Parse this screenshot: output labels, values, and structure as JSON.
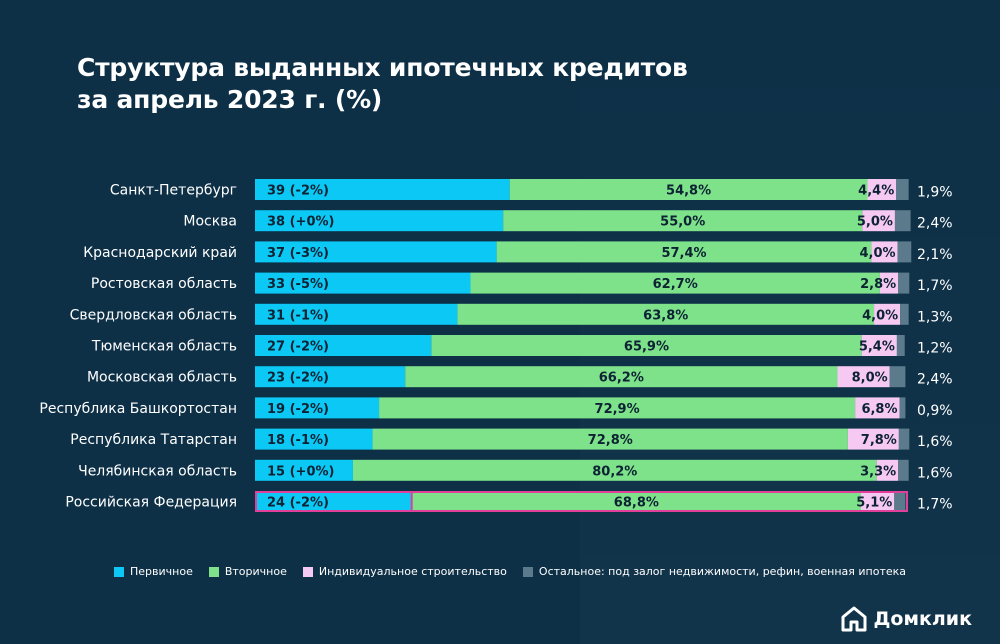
{
  "title": {
    "line1": "Структура выданных ипотечных кредитов",
    "line2": "за апрель 2023 г. (%)"
  },
  "colors": {
    "background": "#0d3047",
    "primary": "#0bc8f4",
    "secondary": "#7de28a",
    "individual": "#f6c9f3",
    "other": "#5b7a8c",
    "highlight": "#e0409a"
  },
  "legend": [
    {
      "label": "Первичное",
      "color": "#0bc8f4"
    },
    {
      "label": "Вторичное",
      "color": "#7de28a"
    },
    {
      "label": "Индивидуальное строительство",
      "color": "#f6c9f3"
    },
    {
      "label": "Остальное: под залог недвижимости, рефин, военная ипотека",
      "color": "#5b7a8c"
    }
  ],
  "brand": {
    "name": "Домклик",
    "icon": "house-icon"
  },
  "chart_data": {
    "type": "bar",
    "orientation": "horizontal",
    "stacked": true,
    "categories": [
      "Санкт-Петербург",
      "Москва",
      "Краснодарский край",
      "Ростовская область",
      "Свердловская область",
      "Тюменская область",
      "Московская область",
      "Республика Башкортостан",
      "Республика Татарстан",
      "Челябинская область",
      "Российская Федерация"
    ],
    "series": [
      {
        "name": "Первичное",
        "values": [
          39,
          38,
          37,
          33,
          31,
          27,
          23,
          19,
          18,
          15,
          24
        ],
        "labels": [
          "39 (-2%)",
          "38 (+0%)",
          "37 (-3%)",
          "33 (-5%)",
          "31 (-1%)",
          "27 (-2%)",
          "23 (-2%)",
          "19 (-2%)",
          "18 (-1%)",
          "15 (+0%)",
          "24 (-2%)"
        ]
      },
      {
        "name": "Вторичное",
        "values": [
          54.8,
          55.0,
          57.4,
          62.7,
          63.8,
          65.9,
          66.2,
          72.9,
          72.8,
          80.2,
          68.8
        ],
        "labels": [
          "54,8%",
          "55,0%",
          "57,4%",
          "62,7%",
          "63,8%",
          "65,9%",
          "66,2%",
          "72,9%",
          "72,8%",
          "80,2%",
          "68,8%"
        ]
      },
      {
        "name": "Индивидуальное строительство",
        "values": [
          4.4,
          5.0,
          4.0,
          2.8,
          4.0,
          5.4,
          8.0,
          6.8,
          7.8,
          3.3,
          5.1
        ],
        "labels": [
          "4,4%",
          "5,0%",
          "4,0%",
          "2,8%",
          "4,0%",
          "5,4%",
          "8,0%",
          "6,8%",
          "7,8%",
          "3,3%",
          "5,1%"
        ]
      },
      {
        "name": "Остальное: под залог недвижимости, рефин, военная ипотека",
        "values": [
          1.9,
          2.4,
          2.1,
          1.7,
          1.3,
          1.2,
          2.4,
          0.9,
          1.6,
          1.6,
          1.7
        ],
        "labels": [
          "1,9%",
          "2,4%",
          "2,1%",
          "1,7%",
          "1,3%",
          "1,2%",
          "2,4%",
          "0,9%",
          "1,6%",
          "1,6%",
          "1,7%"
        ]
      }
    ],
    "highlighted_category": "Российская Федерация",
    "xlim": [
      0,
      100
    ],
    "grid": false,
    "legend_position": "bottom"
  }
}
